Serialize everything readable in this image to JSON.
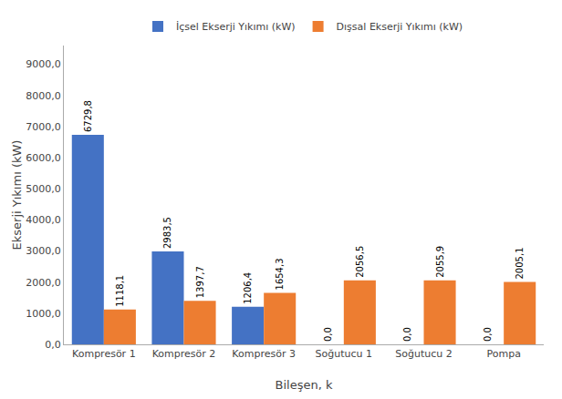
{
  "chart_data": {
    "type": "bar",
    "categories": [
      "Kompresör 1",
      "Kompresör 2",
      "Kompresör 3",
      "Soğutucu 1",
      "Soğutucu 2",
      "Pompa"
    ],
    "series": [
      {
        "name": "İçsel Ekserji Yıkımı (kW)",
        "color": "#4472c4",
        "values": [
          6729.8,
          2983.5,
          1206.4,
          0.0,
          0.0,
          0.0
        ],
        "value_labels": [
          "6729,8",
          "2983,5",
          "1206,4",
          "0,0",
          "0,0",
          "0,0"
        ]
      },
      {
        "name": "Dışsal Ekserji Yıkımı (kW)",
        "color": "#ed7d31",
        "values": [
          1118.1,
          1397.7,
          1654.3,
          2056.5,
          2055.9,
          2005.1
        ],
        "value_labels": [
          "1118,1",
          "1397,7",
          "1654,3",
          "2056,5",
          "2055,9",
          "2005,1"
        ]
      }
    ],
    "xlabel": "Bileşen, k",
    "ylabel": "Ekserji Yıkımı (kW)",
    "ylim": [
      0,
      9600
    ],
    "yticks": [
      {
        "value": 0.0,
        "label": "0,0"
      },
      {
        "value": 1000.0,
        "label": "1000,0"
      },
      {
        "value": 2000.0,
        "label": "2000,0"
      },
      {
        "value": 3000.0,
        "label": "3000,0"
      },
      {
        "value": 4000.0,
        "label": "4000,0"
      },
      {
        "value": 5000.0,
        "label": "5000,0"
      },
      {
        "value": 6000.0,
        "label": "6000,0"
      },
      {
        "value": 7000.0,
        "label": "7000,0"
      },
      {
        "value": 8000.0,
        "label": "8000,0"
      },
      {
        "value": 9000.0,
        "label": "9000,0"
      }
    ],
    "grid": false,
    "data_labels": true,
    "legend": "top"
  }
}
